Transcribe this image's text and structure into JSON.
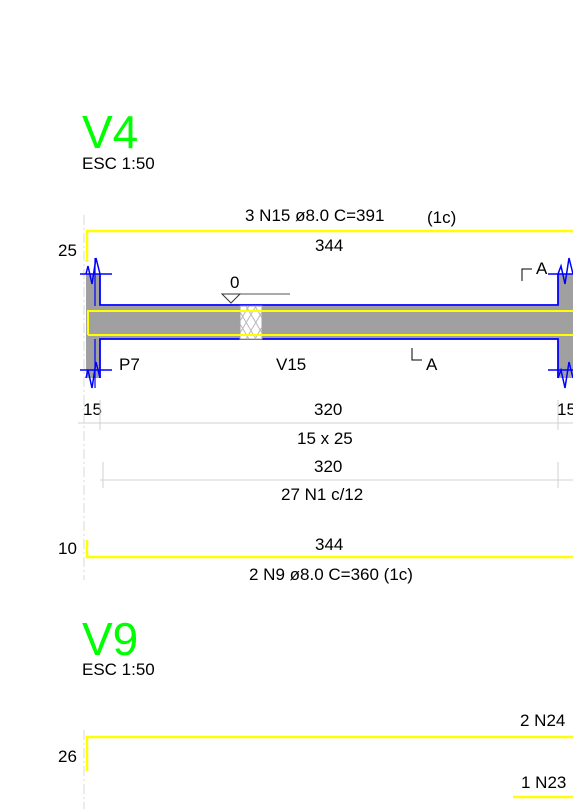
{
  "beams": [
    {
      "id": "V4",
      "scale": "ESC 1:50",
      "top_bar_label": "3 N15 ø8.0  C=391",
      "top_bar_layer": "(1c)",
      "top_bar_length": "344",
      "top_hook": "25",
      "level_mark": "0",
      "section_mark_top": "A",
      "section_mark_bottom": "A",
      "support_left": "P7",
      "crossing_beam": "V15",
      "left_support_width": "15",
      "span": "320",
      "right_support_width": "15",
      "section": "15 x 25",
      "stirrup_span": "320",
      "stirrups": "27 N1 c/12",
      "bottom_hook": "10",
      "bottom_bar_length": "344",
      "bottom_bar_label": "2 N9 ø8.0  C=360  (1c)"
    },
    {
      "id": "V9",
      "scale": "ESC 1:50",
      "top_hook": "26",
      "bar_label_1": "2 N24",
      "bar_label_2": "1 N23"
    }
  ],
  "colors": {
    "title": "#00ff00",
    "rebar": "#ffff00",
    "outline": "#0000ff",
    "concrete": "#a0a0a0",
    "dimension": "#d0d0d0"
  }
}
